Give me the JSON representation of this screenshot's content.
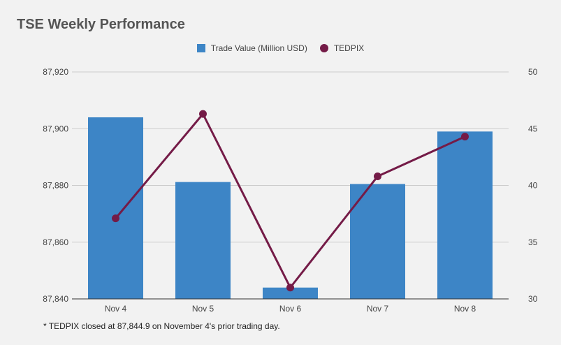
{
  "chart_data": {
    "type": "bar",
    "title": "TSE Weekly Performance",
    "categories": [
      "Nov 4",
      "Nov 5",
      "Nov 6",
      "Nov 7",
      "Nov 8"
    ],
    "series": [
      {
        "name": "Trade Value (Million USD)",
        "kind": "bar",
        "axis": "left",
        "color": "#3d85c6",
        "values": [
          87904,
          87881.2,
          87844,
          87880.5,
          87899
        ]
      },
      {
        "name": "TEDPIX",
        "kind": "line",
        "axis": "right",
        "color": "#741b47",
        "values": [
          37.1,
          46.3,
          31.0,
          40.8,
          44.3
        ]
      }
    ],
    "y_left": {
      "min": 87840,
      "max": 87920,
      "ticks": [
        87840,
        87860,
        87880,
        87900,
        87920
      ],
      "tick_labels": [
        "87,840",
        "87,860",
        "87,880",
        "87,900",
        "87,920"
      ]
    },
    "y_right": {
      "min": 30,
      "max": 50,
      "ticks": [
        30,
        35,
        40,
        45,
        50
      ],
      "tick_labels": [
        "30",
        "35",
        "40",
        "45",
        "50"
      ]
    },
    "grid": true,
    "legend_position": "top-center",
    "footnote": "* TEDPIX closed at 87,844.9 on November 4's prior trading day."
  }
}
